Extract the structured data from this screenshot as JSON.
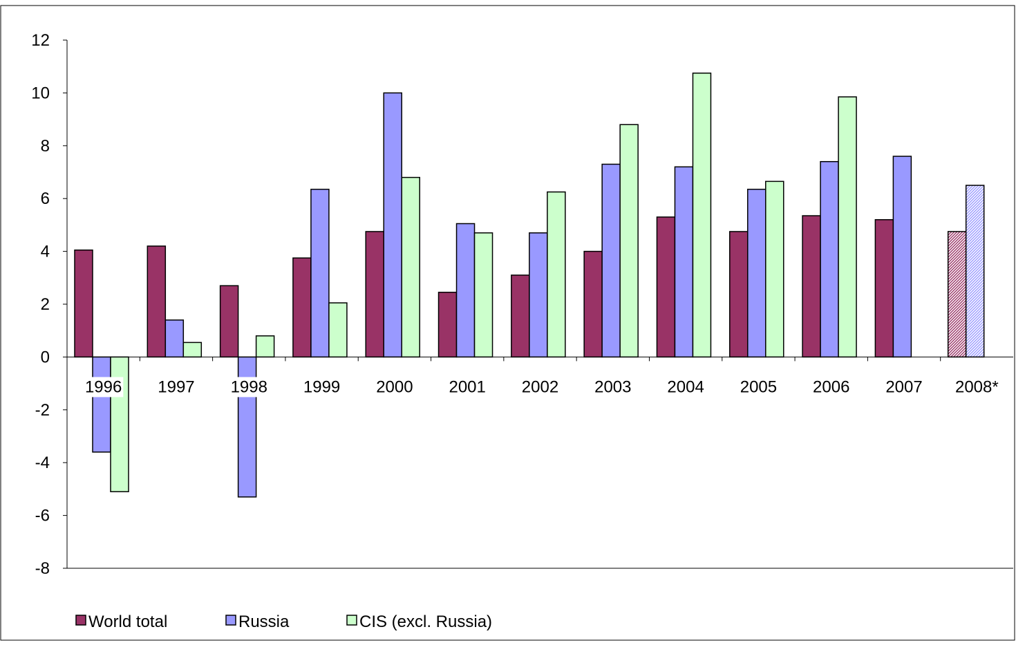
{
  "chart_data": {
    "type": "bar",
    "categories": [
      "1996",
      "1997",
      "1998",
      "1999",
      "2000",
      "2001",
      "2002",
      "2003",
      "2004",
      "2005",
      "2006",
      "2007",
      "2008*"
    ],
    "series": [
      {
        "name": "World total",
        "color": "#993366",
        "values": [
          4.05,
          4.2,
          2.7,
          3.75,
          4.75,
          2.45,
          3.1,
          4.0,
          5.3,
          4.75,
          5.35,
          5.2,
          4.75
        ]
      },
      {
        "name": "Russia",
        "color": "#9999ff",
        "values": [
          -3.6,
          1.4,
          -5.3,
          6.35,
          10.0,
          5.05,
          4.7,
          7.3,
          7.2,
          6.35,
          7.4,
          7.6,
          6.5
        ]
      },
      {
        "name": "CIS (excl. Russia)",
        "color": "#ccffcc",
        "values": [
          -5.1,
          0.55,
          0.8,
          2.05,
          6.8,
          4.7,
          6.25,
          8.8,
          10.75,
          6.65,
          9.85,
          null,
          null
        ]
      }
    ],
    "hatched_categories": [
      "2008*"
    ],
    "title": "",
    "xlabel": "",
    "ylabel": "",
    "ylim": [
      -8,
      12
    ],
    "yticks": [
      12,
      10,
      8,
      6,
      4,
      2,
      0,
      -2,
      -4,
      -6,
      -8
    ],
    "grid": false,
    "legend_position": "bottom-left"
  }
}
